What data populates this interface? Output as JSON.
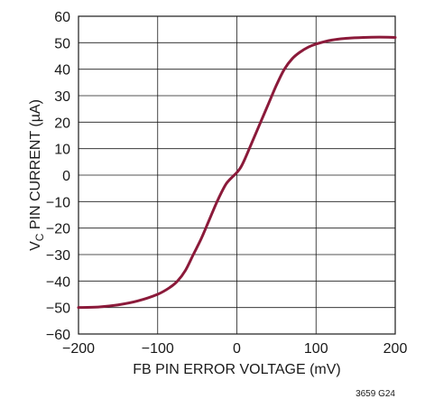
{
  "chart_data": {
    "type": "line",
    "title": "",
    "xlabel": "FB PIN ERROR VOLTAGE (mV)",
    "ylabel": {
      "prefix": "V",
      "sub": "C",
      "suffix": " PIN CURRENT (µA)"
    },
    "xlim": [
      -200,
      200
    ],
    "ylim": [
      -60,
      60
    ],
    "xticks": [
      -200,
      -100,
      0,
      100,
      200
    ],
    "xtick_labels": [
      "−200",
      "−100",
      "0",
      "100",
      "200"
    ],
    "yticks": [
      -60,
      -50,
      -40,
      -30,
      -20,
      -10,
      0,
      10,
      20,
      30,
      40,
      50,
      60
    ],
    "ytick_labels": [
      "−60",
      "−50",
      "−40",
      "−30",
      "−20",
      "−10",
      "0",
      "10",
      "20",
      "30",
      "40",
      "50",
      "60"
    ],
    "grid": true,
    "series": [
      {
        "color": "#8b1a3a",
        "x": [
          -200,
          -175,
          -150,
          -125,
          -100,
          -85,
          -75,
          -65,
          -55,
          -45,
          -35,
          -25,
          -15,
          -10,
          -5,
          0,
          5,
          10,
          20,
          30,
          40,
          50,
          60,
          70,
          80,
          90,
          100,
          120,
          140,
          160,
          180,
          200
        ],
        "y": [
          -50,
          -49.8,
          -49,
          -47.5,
          -45,
          -42.5,
          -40,
          -36,
          -30,
          -24,
          -17,
          -10,
          -4,
          -2,
          -0.5,
          1,
          3,
          6,
          13,
          20,
          27,
          34,
          40,
          44,
          46.5,
          48.3,
          49.5,
          51,
          51.7,
          52,
          52.1,
          52
        ]
      }
    ],
    "footnote": "3659 G24"
  }
}
